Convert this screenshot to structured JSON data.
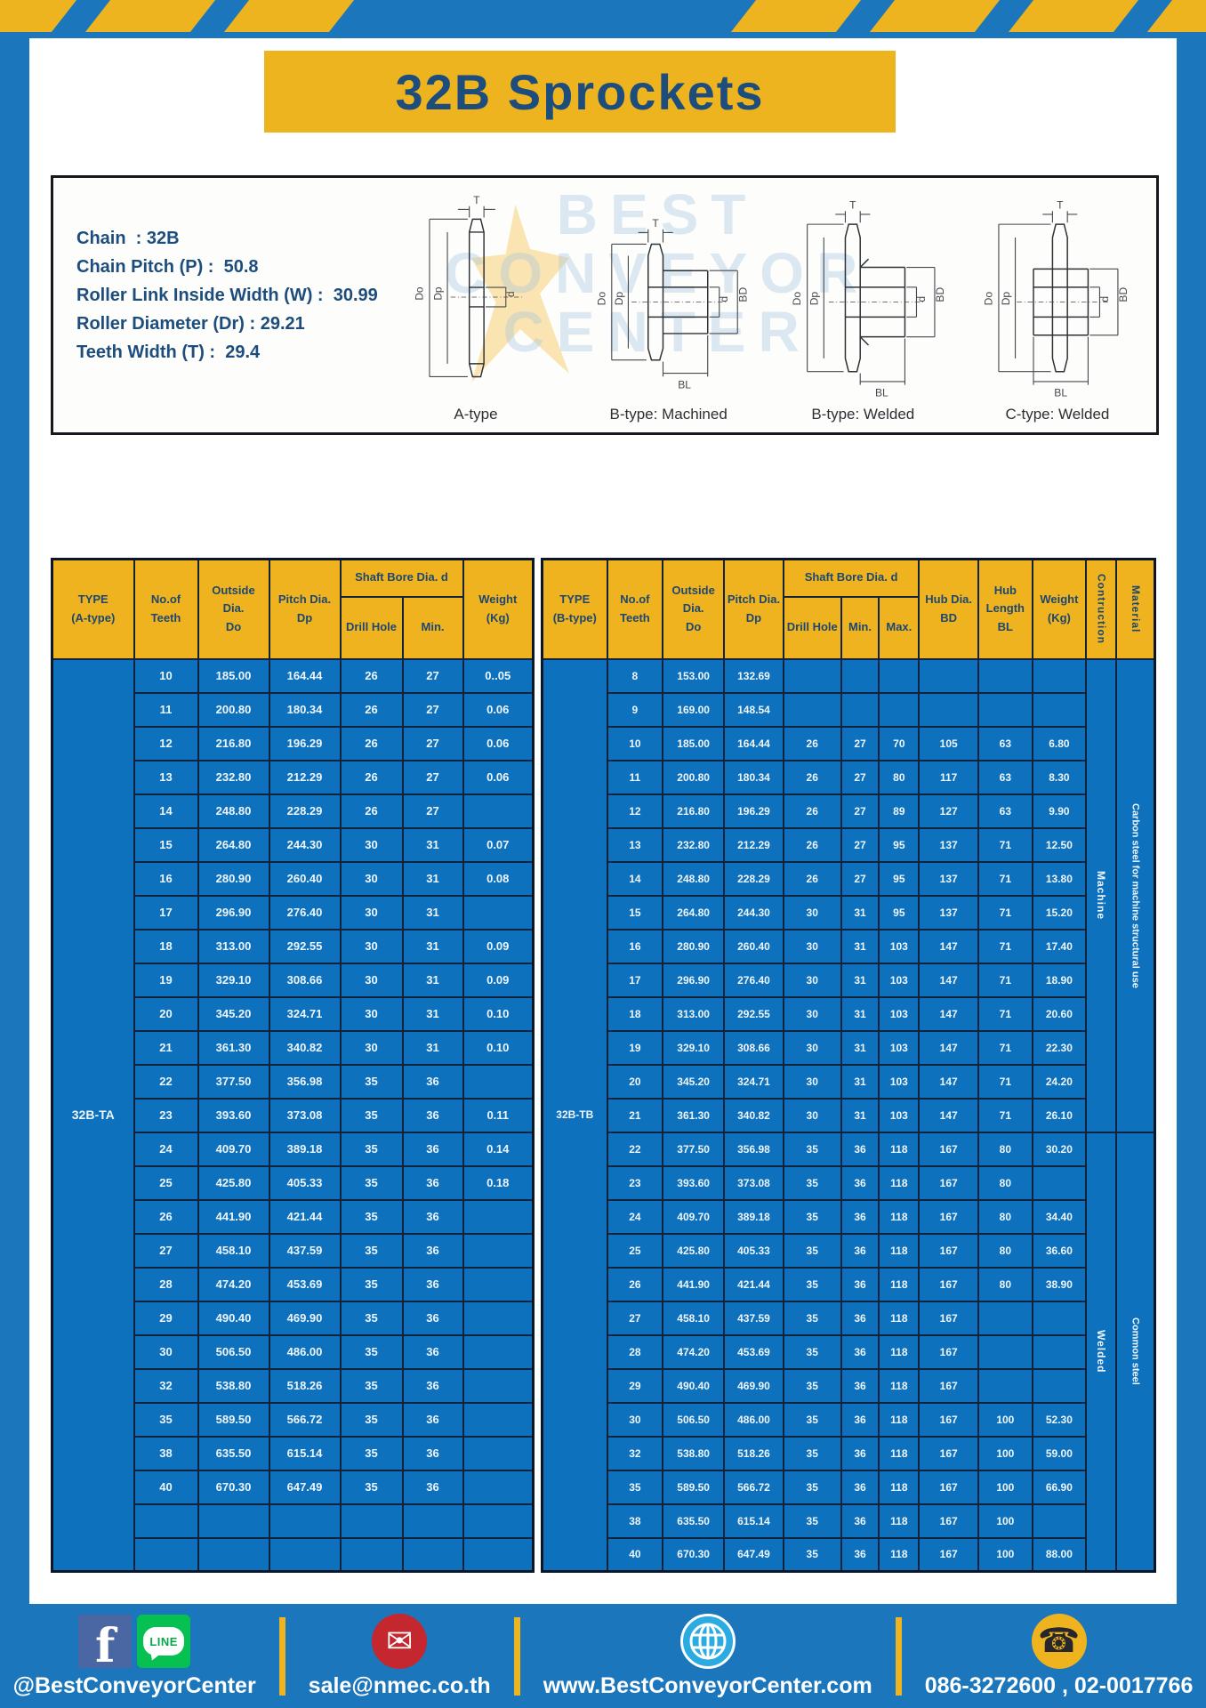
{
  "title": "32B Sprockets",
  "colors": {
    "page_blue": "#1b76bc",
    "cell_blue": "#0e71bd",
    "gold": "#eeb41f",
    "navy_text": "#1d4d7c",
    "border_dark": "#13233b"
  },
  "specs": [
    {
      "label": "Chain",
      "value": "32B"
    },
    {
      "label": "Chain Pitch (P)",
      "value": "50.8"
    },
    {
      "label": "Roller Link Inside Width (W)",
      "value": "30.99"
    },
    {
      "label": "Roller Diameter (Dr)",
      "value": "29.21"
    },
    {
      "label": "Teeth Width (T)",
      "value": "29.4"
    }
  ],
  "diagram": {
    "captions": [
      "A-type",
      "B-type: Machined",
      "B-type: Welded",
      "C-type: Welded"
    ],
    "dims": {
      "T": "T",
      "Do": "Do",
      "Dp": "Dp",
      "d": "d",
      "BD": "BD",
      "BL": "BL"
    },
    "watermark": [
      "BEST",
      "CONVEYOR",
      "CENTER"
    ]
  },
  "table_a": {
    "type_lines": [
      "TYPE",
      "(A-type)"
    ],
    "col_teeth": [
      "No.of",
      "Teeth"
    ],
    "col_outside": [
      "Outside",
      "Dia.",
      "Do"
    ],
    "col_pitch": [
      "Pitch Dia.",
      "Dp"
    ],
    "col_shaft": "Shaft Bore Dia. d",
    "col_drill": "Drill Hole",
    "col_min": "Min.",
    "col_weight": [
      "Weight",
      "(Kg)"
    ],
    "type_label": "32B-TA",
    "rows": [
      [
        "10",
        "185.00",
        "164.44",
        "26",
        "27",
        "0..05"
      ],
      [
        "11",
        "200.80",
        "180.34",
        "26",
        "27",
        "0.06"
      ],
      [
        "12",
        "216.80",
        "196.29",
        "26",
        "27",
        "0.06"
      ],
      [
        "13",
        "232.80",
        "212.29",
        "26",
        "27",
        "0.06"
      ],
      [
        "14",
        "248.80",
        "228.29",
        "26",
        "27",
        ""
      ],
      [
        "15",
        "264.80",
        "244.30",
        "30",
        "31",
        "0.07"
      ],
      [
        "16",
        "280.90",
        "260.40",
        "30",
        "31",
        "0.08"
      ],
      [
        "17",
        "296.90",
        "276.40",
        "30",
        "31",
        ""
      ],
      [
        "18",
        "313.00",
        "292.55",
        "30",
        "31",
        "0.09"
      ],
      [
        "19",
        "329.10",
        "308.66",
        "30",
        "31",
        "0.09"
      ],
      [
        "20",
        "345.20",
        "324.71",
        "30",
        "31",
        "0.10"
      ],
      [
        "21",
        "361.30",
        "340.82",
        "30",
        "31",
        "0.10"
      ],
      [
        "22",
        "377.50",
        "356.98",
        "35",
        "36",
        ""
      ],
      [
        "23",
        "393.60",
        "373.08",
        "35",
        "36",
        "0.11"
      ],
      [
        "24",
        "409.70",
        "389.18",
        "35",
        "36",
        "0.14"
      ],
      [
        "25",
        "425.80",
        "405.33",
        "35",
        "36",
        "0.18"
      ],
      [
        "26",
        "441.90",
        "421.44",
        "35",
        "36",
        ""
      ],
      [
        "27",
        "458.10",
        "437.59",
        "35",
        "36",
        ""
      ],
      [
        "28",
        "474.20",
        "453.69",
        "35",
        "36",
        ""
      ],
      [
        "29",
        "490.40",
        "469.90",
        "35",
        "36",
        ""
      ],
      [
        "30",
        "506.50",
        "486.00",
        "35",
        "36",
        ""
      ],
      [
        "32",
        "538.80",
        "518.26",
        "35",
        "36",
        ""
      ],
      [
        "35",
        "589.50",
        "566.72",
        "35",
        "36",
        ""
      ],
      [
        "38",
        "635.50",
        "615.14",
        "35",
        "36",
        ""
      ],
      [
        "40",
        "670.30",
        "647.49",
        "35",
        "36",
        ""
      ],
      [
        "",
        "",
        "",
        "",
        "",
        ""
      ],
      [
        "",
        "",
        "",
        "",
        "",
        ""
      ]
    ]
  },
  "table_b": {
    "type_lines": [
      "TYPE",
      "(B-type)"
    ],
    "col_teeth": [
      "No.of",
      "Teeth"
    ],
    "col_outside": [
      "Outside",
      "Dia.",
      "Do"
    ],
    "col_pitch": [
      "Pitch Dia.",
      "Dp"
    ],
    "col_shaft": "Shaft Bore Dia. d",
    "col_drill": "Drill Hole",
    "col_min": "Min.",
    "col_max": "Max.",
    "col_hub_dia": [
      "Hub Dia.",
      "BD"
    ],
    "col_hub_len": [
      "Hub",
      "Length",
      "BL"
    ],
    "col_weight": [
      "Weight",
      "(Kg)"
    ],
    "col_construction": "Contruction",
    "col_material": "Material",
    "type_label": "32B-TB",
    "construction_groups": [
      {
        "label": "Machine",
        "span": 14
      },
      {
        "label": "Welded",
        "span": 13
      }
    ],
    "material_groups": [
      {
        "label": "Carbon steel for machine structural use",
        "span": 14
      },
      {
        "label": "Common steel",
        "span": 13
      }
    ],
    "rows": [
      [
        "8",
        "153.00",
        "132.69",
        "",
        "",
        "",
        "",
        "",
        ""
      ],
      [
        "9",
        "169.00",
        "148.54",
        "",
        "",
        "",
        "",
        "",
        ""
      ],
      [
        "10",
        "185.00",
        "164.44",
        "26",
        "27",
        "70",
        "105",
        "63",
        "6.80"
      ],
      [
        "11",
        "200.80",
        "180.34",
        "26",
        "27",
        "80",
        "117",
        "63",
        "8.30"
      ],
      [
        "12",
        "216.80",
        "196.29",
        "26",
        "27",
        "89",
        "127",
        "63",
        "9.90"
      ],
      [
        "13",
        "232.80",
        "212.29",
        "26",
        "27",
        "95",
        "137",
        "71",
        "12.50"
      ],
      [
        "14",
        "248.80",
        "228.29",
        "26",
        "27",
        "95",
        "137",
        "71",
        "13.80"
      ],
      [
        "15",
        "264.80",
        "244.30",
        "30",
        "31",
        "95",
        "137",
        "71",
        "15.20"
      ],
      [
        "16",
        "280.90",
        "260.40",
        "30",
        "31",
        "103",
        "147",
        "71",
        "17.40"
      ],
      [
        "17",
        "296.90",
        "276.40",
        "30",
        "31",
        "103",
        "147",
        "71",
        "18.90"
      ],
      [
        "18",
        "313.00",
        "292.55",
        "30",
        "31",
        "103",
        "147",
        "71",
        "20.60"
      ],
      [
        "19",
        "329.10",
        "308.66",
        "30",
        "31",
        "103",
        "147",
        "71",
        "22.30"
      ],
      [
        "20",
        "345.20",
        "324.71",
        "30",
        "31",
        "103",
        "147",
        "71",
        "24.20"
      ],
      [
        "21",
        "361.30",
        "340.82",
        "30",
        "31",
        "103",
        "147",
        "71",
        "26.10"
      ],
      [
        "22",
        "377.50",
        "356.98",
        "35",
        "36",
        "118",
        "167",
        "80",
        "30.20"
      ],
      [
        "23",
        "393.60",
        "373.08",
        "35",
        "36",
        "118",
        "167",
        "80",
        ""
      ],
      [
        "24",
        "409.70",
        "389.18",
        "35",
        "36",
        "118",
        "167",
        "80",
        "34.40"
      ],
      [
        "25",
        "425.80",
        "405.33",
        "35",
        "36",
        "118",
        "167",
        "80",
        "36.60"
      ],
      [
        "26",
        "441.90",
        "421.44",
        "35",
        "36",
        "118",
        "167",
        "80",
        "38.90"
      ],
      [
        "27",
        "458.10",
        "437.59",
        "35",
        "36",
        "118",
        "167",
        "",
        ""
      ],
      [
        "28",
        "474.20",
        "453.69",
        "35",
        "36",
        "118",
        "167",
        "",
        ""
      ],
      [
        "29",
        "490.40",
        "469.90",
        "35",
        "36",
        "118",
        "167",
        "",
        ""
      ],
      [
        "30",
        "506.50",
        "486.00",
        "35",
        "36",
        "118",
        "167",
        "100",
        "52.30"
      ],
      [
        "32",
        "538.80",
        "518.26",
        "35",
        "36",
        "118",
        "167",
        "100",
        "59.00"
      ],
      [
        "35",
        "589.50",
        "566.72",
        "35",
        "36",
        "118",
        "167",
        "100",
        "66.90"
      ],
      [
        "38",
        "635.50",
        "615.14",
        "35",
        "36",
        "118",
        "167",
        "100",
        ""
      ],
      [
        "40",
        "670.30",
        "647.49",
        "35",
        "36",
        "118",
        "167",
        "100",
        "88.00"
      ]
    ]
  },
  "footer": {
    "items": [
      {
        "label": "@BestConveyorCenter"
      },
      {
        "label": "sale@nmec.co.th"
      },
      {
        "label": "www.BestConveyorCenter.com"
      },
      {
        "label": "086-3272600 , 02-0017766"
      }
    ],
    "facebook_letter": "f",
    "line_icon_text": "LINE",
    "mail_glyph": "✉",
    "phone_glyph": "☎"
  }
}
